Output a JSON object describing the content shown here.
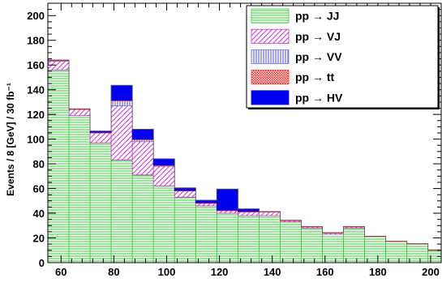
{
  "chart_data": {
    "type": "bar",
    "stacked": true,
    "histogram": true,
    "bin_width": 8,
    "x": [
      55,
      63,
      71,
      79,
      87,
      95,
      103,
      111,
      119,
      127,
      135,
      143,
      151,
      159,
      167,
      175,
      183,
      191,
      199
    ],
    "xlim": [
      55,
      204
    ],
    "ylim": [
      0,
      210
    ],
    "xticks": [
      60,
      80,
      100,
      120,
      140,
      160,
      180,
      200
    ],
    "yticks": [
      0,
      20,
      40,
      60,
      80,
      100,
      120,
      140,
      160,
      180,
      200
    ],
    "ylabel": "Events / 8 [GeV] / 30 fb⁻¹",
    "xlabel": "",
    "legend_position": "top-right",
    "series": [
      {
        "name": "pp → JJ",
        "key": "jj",
        "fill": "#33cc33",
        "values": [
          156,
          119,
          97,
          83,
          71,
          62,
          53,
          46,
          40,
          38,
          38,
          33,
          28,
          23,
          28,
          21,
          17,
          15,
          10
        ]
      },
      {
        "name": "pp → VJ",
        "key": "vj",
        "fill": "#cc33cc",
        "values": [
          7,
          5,
          8,
          44,
          27,
          16,
          5,
          2,
          2,
          3,
          3,
          1,
          1,
          1,
          1,
          0,
          0,
          0,
          0
        ]
      },
      {
        "name": "pp → VV",
        "key": "vv",
        "fill": "#7777ee",
        "values": [
          0.5,
          0,
          0,
          4,
          1.5,
          0.5,
          0,
          0,
          0,
          0,
          0,
          0,
          0,
          0,
          0,
          0,
          0,
          0,
          0
        ]
      },
      {
        "name": "pp → tt",
        "key": "tt",
        "fill": "#ee3333",
        "values": [
          0.5,
          0.5,
          0.5,
          0.5,
          0.5,
          0.5,
          0.5,
          0.5,
          0.5,
          0.5,
          0.3,
          0.3,
          0.3,
          0.3,
          0.3,
          0.3,
          0.3,
          0.3,
          0.3
        ]
      },
      {
        "name": "pp → HV",
        "key": "hv",
        "fill": "#0000ee",
        "values": [
          0,
          0,
          1,
          12,
          8,
          5,
          2,
          2,
          17,
          2,
          0,
          0,
          0,
          0,
          0,
          0,
          0,
          0,
          0
        ]
      }
    ]
  }
}
